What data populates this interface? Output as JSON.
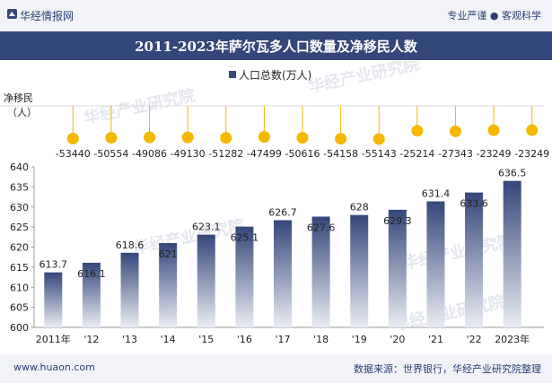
{
  "header": {
    "brand": "华经情报网",
    "tagline": "专业严谨 ● 客观科学"
  },
  "title": "2011-2023年萨尔瓦多人口数量及净移民人数",
  "footer": {
    "url": "www.huaon.com",
    "source": "数据来源：世界银行，华经产业研究院整理"
  },
  "watermark": "华经产业研究院",
  "colors": {
    "bar_top": "#34477a",
    "bar_bottom": "#e9ecf3",
    "dot": "#f5b700",
    "header_bg": "#34477a"
  },
  "chart_data": {
    "type": "bar",
    "categories": [
      "2011年",
      "'12",
      "'13",
      "'14",
      "'15",
      "'16",
      "'17",
      "'18",
      "'19",
      "'20",
      "'21",
      "'22",
      "2023年"
    ],
    "series": [
      {
        "name": "人口总数(万人)",
        "values": [
          613.7,
          616.1,
          618.6,
          621,
          623.1,
          625.1,
          626.7,
          627.6,
          628,
          629.3,
          631.4,
          633.6,
          636.5
        ]
      }
    ],
    "value_labels": [
      "613.7",
      "616.1",
      "618.6",
      "621",
      "623.1",
      "625.1",
      "626.7",
      "627.6",
      "628",
      "629.3",
      "631.4",
      "633.6",
      "636.5"
    ],
    "net_migration": {
      "label": "净移民（人）",
      "values": [
        -53440,
        -50554,
        -49086,
        -49130,
        -51282,
        -47499,
        -50616,
        -54158,
        -55143,
        -25214,
        -27343,
        -23249,
        -23249
      ]
    },
    "ylim": [
      600,
      640
    ],
    "yticks": [
      600,
      605,
      610,
      615,
      620,
      625,
      630,
      635,
      640
    ],
    "legend": "top-center",
    "grid": false
  }
}
